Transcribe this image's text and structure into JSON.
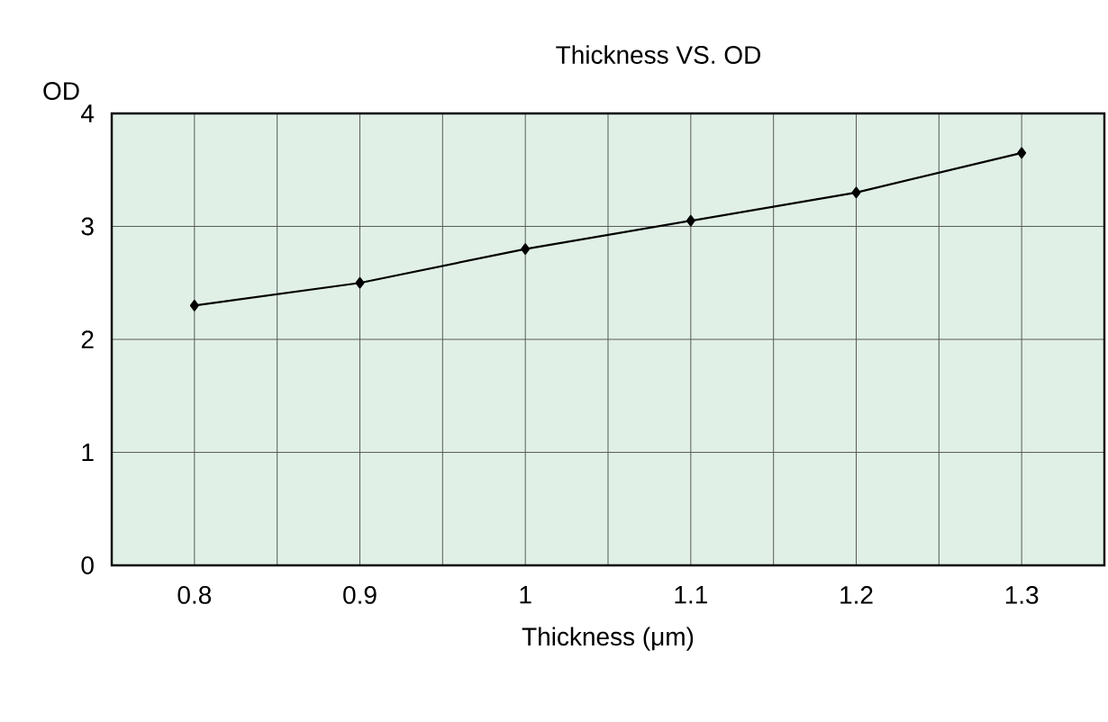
{
  "chart_data": {
    "type": "line",
    "title": "Thickness VS. OD",
    "xlabel": "Thickness (μm)",
    "ylabel": "OD",
    "x": [
      0.8,
      0.9,
      1,
      1.1,
      1.2,
      1.3
    ],
    "series": [
      {
        "color": "#000000",
        "values": [
          2.3,
          2.5,
          2.8,
          3.05,
          3.3,
          3.65
        ]
      }
    ],
    "xlim": [
      0.75,
      1.35
    ],
    "xticks": [
      0.8,
      0.9,
      1,
      1.1,
      1.2,
      1.3
    ],
    "ylim": [
      0,
      4
    ],
    "yticks": [
      0,
      1,
      2,
      3,
      4
    ],
    "grid": true,
    "marker": "diamond",
    "line_style": "solid"
  }
}
